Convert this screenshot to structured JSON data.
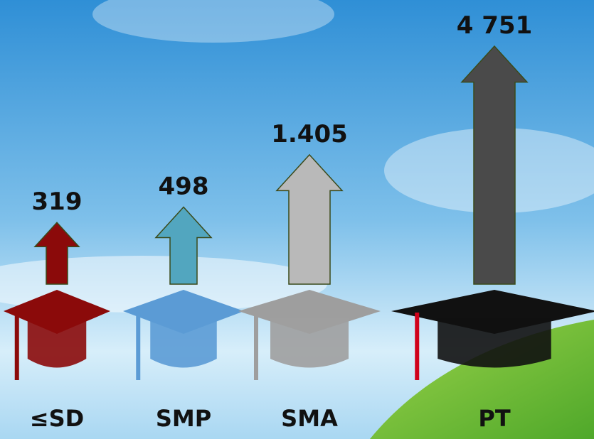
{
  "chart_data": {
    "type": "arrow",
    "categories": [
      "≤SD",
      "SMP",
      "SMA",
      "PT"
    ],
    "values": [
      319,
      498,
      1405,
      4751
    ],
    "value_labels": [
      "319",
      "498",
      "1.405",
      "4 751"
    ],
    "colors": [
      "#8b0a0a",
      "#52a6bf",
      "#b9b9b9",
      "#4a4a4a"
    ]
  }
}
